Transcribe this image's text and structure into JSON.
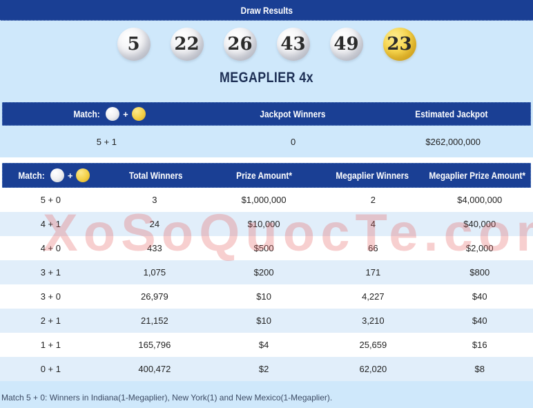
{
  "topbar": {
    "title": "Draw Results"
  },
  "draw": {
    "white_balls": [
      "5",
      "22",
      "26",
      "43",
      "49"
    ],
    "mega_ball": "23",
    "megaplier_label": "MEGAPLIER 4x"
  },
  "jackpot": {
    "header": {
      "match_label": "Match:",
      "plus": "+",
      "jackpot_winners": "Jackpot Winners",
      "estimated_jackpot": "Estimated Jackpot"
    },
    "values": {
      "match": "5 + 1",
      "jackpot_winners": "0",
      "estimated_jackpot": "$262,000,000"
    }
  },
  "prize_table": {
    "header": {
      "match_label": "Match:",
      "plus": "+",
      "total_winners": "Total Winners",
      "prize_amount": "Prize Amount*",
      "megaplier_winners": "Megaplier Winners",
      "megaplier_prize_amount": "Megaplier Prize Amount*"
    },
    "rows": [
      {
        "match": "5 + 0",
        "total_winners": "3",
        "prize": "$1,000,000",
        "megaplier_winners": "2",
        "megaplier_prize": "$4,000,000"
      },
      {
        "match": "4 + 1",
        "total_winners": "24",
        "prize": "$10,000",
        "megaplier_winners": "4",
        "megaplier_prize": "$40,000"
      },
      {
        "match": "4 + 0",
        "total_winners": "433",
        "prize": "$500",
        "megaplier_winners": "66",
        "megaplier_prize": "$2,000"
      },
      {
        "match": "3 + 1",
        "total_winners": "1,075",
        "prize": "$200",
        "megaplier_winners": "171",
        "megaplier_prize": "$800"
      },
      {
        "match": "3 + 0",
        "total_winners": "26,979",
        "prize": "$10",
        "megaplier_winners": "4,227",
        "megaplier_prize": "$40"
      },
      {
        "match": "2 + 1",
        "total_winners": "21,152",
        "prize": "$10",
        "megaplier_winners": "3,210",
        "megaplier_prize": "$40"
      },
      {
        "match": "1 + 1",
        "total_winners": "165,796",
        "prize": "$4",
        "megaplier_winners": "25,659",
        "megaplier_prize": "$16"
      },
      {
        "match": "0 + 1",
        "total_winners": "400,472",
        "prize": "$2",
        "megaplier_winners": "62,020",
        "megaplier_prize": "$8"
      }
    ]
  },
  "footnote": "Match 5 + 0: Winners in Indiana(1-Megaplier), New York(1) and New Mexico(1-Megaplier).",
  "watermark": "XoSoQuocTe.com",
  "colors": {
    "header_blue": "#1a3f94",
    "section_blue": "#cfe8fb",
    "row_alt_blue": "#e1eefa",
    "mega_gold": "#f2cd3c",
    "watermark_pink": "#e46060"
  }
}
